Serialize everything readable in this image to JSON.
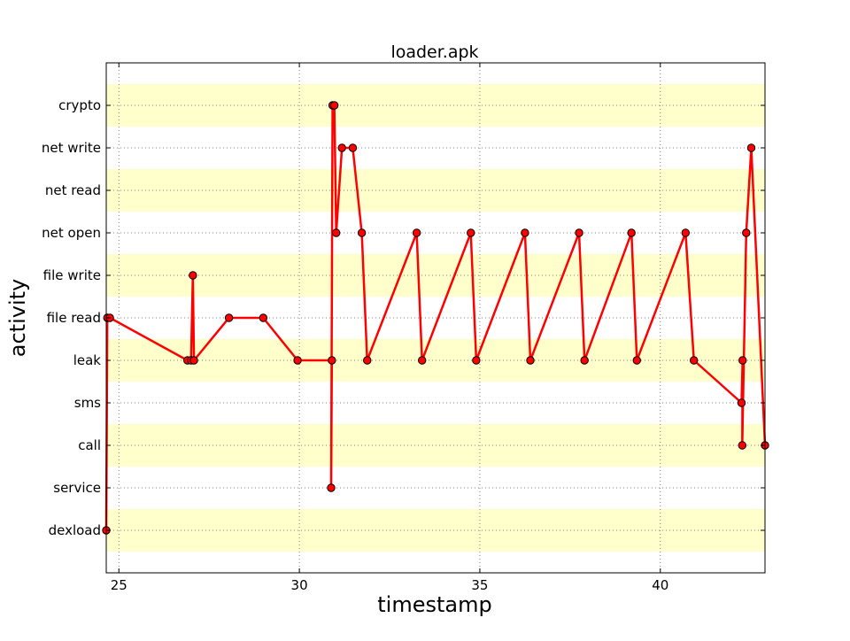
{
  "chart_data": {
    "type": "line",
    "title": "loader.apk",
    "xlabel": "timestamp",
    "ylabel": "activity",
    "xlim": [
      24.65,
      42.9
    ],
    "x_ticks": [
      25,
      30,
      35,
      40
    ],
    "x_tick_labels": [
      "25",
      "30",
      "35",
      "40"
    ],
    "categories": [
      "dexload",
      "service",
      "call",
      "sms",
      "leak",
      "file read",
      "file write",
      "net open",
      "net read",
      "net write",
      "crypto"
    ],
    "ylim": [
      -1,
      11
    ],
    "grid": true,
    "band_color": "#ffffcc",
    "series": [
      {
        "color": "#ff0000",
        "marker_edge": "#000000",
        "points": [
          {
            "x": 24.65,
            "y": "dexload"
          },
          {
            "x": 24.68,
            "y": "file read"
          },
          {
            "x": 24.75,
            "y": "file read"
          },
          {
            "x": 26.9,
            "y": "leak"
          },
          {
            "x": 27.0,
            "y": "leak"
          },
          {
            "x": 27.05,
            "y": "file write"
          },
          {
            "x": 27.08,
            "y": "leak"
          },
          {
            "x": 28.05,
            "y": "file read"
          },
          {
            "x": 29.0,
            "y": "file read"
          },
          {
            "x": 29.95,
            "y": "leak"
          },
          {
            "x": 30.9,
            "y": "leak"
          },
          {
            "x": 30.88,
            "y": "service"
          },
          {
            "x": 30.92,
            "y": "crypto"
          },
          {
            "x": 30.97,
            "y": "crypto"
          },
          {
            "x": 31.02,
            "y": "net open"
          },
          {
            "x": 31.18,
            "y": "net write"
          },
          {
            "x": 31.48,
            "y": "net write"
          },
          {
            "x": 31.73,
            "y": "net open"
          },
          {
            "x": 31.88,
            "y": "leak"
          },
          {
            "x": 33.25,
            "y": "net open"
          },
          {
            "x": 33.4,
            "y": "leak"
          },
          {
            "x": 34.75,
            "y": "net open"
          },
          {
            "x": 34.9,
            "y": "leak"
          },
          {
            "x": 36.25,
            "y": "net open"
          },
          {
            "x": 36.4,
            "y": "leak"
          },
          {
            "x": 37.75,
            "y": "net open"
          },
          {
            "x": 37.9,
            "y": "leak"
          },
          {
            "x": 39.2,
            "y": "net open"
          },
          {
            "x": 39.35,
            "y": "leak"
          },
          {
            "x": 40.7,
            "y": "net open"
          },
          {
            "x": 40.93,
            "y": "leak"
          },
          {
            "x": 42.25,
            "y": "sms"
          },
          {
            "x": 42.28,
            "y": "leak"
          },
          {
            "x": 42.27,
            "y": "call"
          },
          {
            "x": 42.38,
            "y": "net open"
          },
          {
            "x": 42.52,
            "y": "net write"
          },
          {
            "x": 42.9,
            "y": "call"
          }
        ]
      }
    ]
  }
}
